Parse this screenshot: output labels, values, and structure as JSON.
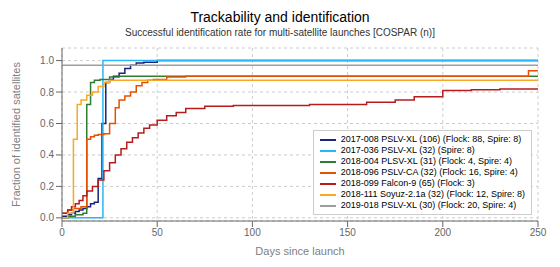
{
  "chart_data": {
    "type": "step",
    "title": "Trackability and identification",
    "subtitle": "Successful identification rate for multi-satellite launches [COSPAR (n)]",
    "xlabel": "Days since launch",
    "ylabel": "Fraction of identified satellites",
    "xlim": [
      0,
      250
    ],
    "ylim": [
      -0.02,
      1.08
    ],
    "xticks": [
      0,
      50,
      100,
      150,
      200,
      250
    ],
    "yticks": [
      {
        "value": 0.0,
        "label": "0.0"
      },
      0.2,
      0.4,
      0.6,
      0.8,
      {
        "value": 1.0,
        "label": "1.0"
      }
    ],
    "grid": true,
    "legend": "lower right",
    "series": [
      {
        "name": "2017-008 PSLV-XL (106) (Flock: 88, Spire: 8)",
        "color": "#1a237e",
        "x": [
          0,
          3,
          5,
          7,
          9,
          11,
          13,
          15,
          17,
          19,
          21,
          23,
          25,
          27,
          30,
          33,
          36,
          39,
          43,
          50,
          250
        ],
        "values": [
          0.01,
          0.02,
          0.03,
          0.04,
          0.05,
          0.06,
          0.07,
          0.09,
          0.1,
          0.25,
          0.6,
          0.86,
          0.88,
          0.9,
          0.92,
          0.95,
          0.97,
          0.985,
          0.99,
          1.0,
          1.0
        ]
      },
      {
        "name": "2017-036 PSLV-XL (32) (Spire: 8)",
        "color": "#29b6f6",
        "x": [
          0,
          3,
          21,
          21.5,
          250
        ],
        "values": [
          0.0,
          0.0,
          0.0,
          1.0,
          1.0
        ]
      },
      {
        "name": "2018-004 PLSV-XL (31) (Flock: 4, Spire: 4)",
        "color": "#2e7d32",
        "x": [
          0,
          3,
          7,
          11,
          13,
          15,
          17,
          20,
          25,
          30,
          250
        ],
        "values": [
          0.0,
          0.01,
          0.02,
          0.03,
          0.72,
          0.86,
          0.875,
          0.88,
          0.895,
          0.9,
          0.9
        ]
      },
      {
        "name": "2018-096 PSLV-CA (32) (Flock: 16, Spire: 4)",
        "color": "#e65100",
        "x": [
          0,
          3,
          6,
          10,
          13,
          15,
          17,
          19,
          22,
          25,
          28,
          30,
          33,
          36,
          39,
          42,
          45,
          48,
          55,
          65,
          240,
          245,
          250
        ],
        "values": [
          0.03,
          0.05,
          0.06,
          0.07,
          0.5,
          0.515,
          0.525,
          0.53,
          0.535,
          0.6,
          0.7,
          0.75,
          0.775,
          0.8,
          0.84,
          0.86,
          0.875,
          0.88,
          0.895,
          0.9,
          0.9,
          0.935,
          0.935
        ]
      },
      {
        "name": "2018-099 Falcon-9 (65) (Flock: 3)",
        "color": "#b71c1c",
        "x": [
          0,
          3,
          5,
          7,
          9,
          11,
          13,
          16,
          19,
          22,
          25,
          28,
          31,
          34,
          37,
          40,
          43,
          46,
          50,
          55,
          60,
          65,
          75,
          90,
          120,
          130,
          145,
          160,
          175,
          185,
          200,
          215,
          230,
          250
        ],
        "values": [
          0.03,
          0.05,
          0.07,
          0.09,
          0.11,
          0.14,
          0.17,
          0.2,
          0.24,
          0.3,
          0.35,
          0.4,
          0.44,
          0.48,
          0.51,
          0.54,
          0.57,
          0.59,
          0.62,
          0.65,
          0.67,
          0.695,
          0.71,
          0.715,
          0.715,
          0.72,
          0.72,
          0.735,
          0.75,
          0.77,
          0.81,
          0.815,
          0.82,
          0.82
        ]
      },
      {
        "name": "2018-111 Soyuz-2.1a (32) (Flock: 12, Spire: 8)",
        "color": "#f9a825",
        "x": [
          0,
          3,
          6,
          8,
          10,
          13,
          16,
          19,
          22,
          25,
          30,
          235,
          240,
          250
        ],
        "values": [
          0.0,
          0.03,
          0.5,
          0.72,
          0.75,
          0.78,
          0.8,
          0.835,
          0.86,
          0.875,
          0.875,
          0.875,
          0.875,
          0.875
        ]
      },
      {
        "name": "2019-018 PSLV-XL (30) (Flock: 20, Spire: 4)",
        "color": "#9e9e9e",
        "x": [
          0,
          250
        ],
        "values": [
          0.97,
          0.97
        ]
      }
    ]
  }
}
